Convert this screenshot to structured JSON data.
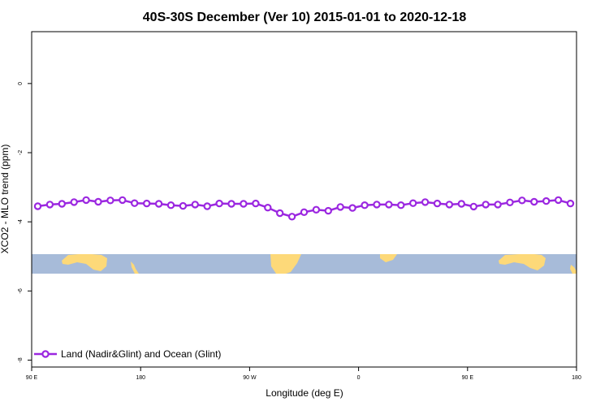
{
  "chart_data": {
    "type": "line",
    "title": "40S-30S December (Ver 10)   2015-01-01 to 2020-12-18",
    "xlabel": "Longitude (deg E)",
    "ylabel": "XCO2 - MLO trend (ppm)",
    "xlim": [
      90,
      540
    ],
    "ylim": [
      -8.2,
      1.5
    ],
    "x_ticks": [
      {
        "value": 90,
        "label": "90 E"
      },
      {
        "value": 180,
        "label": "180"
      },
      {
        "value": 270,
        "label": "90 W"
      },
      {
        "value": 360,
        "label": "0"
      },
      {
        "value": 450,
        "label": "90 E"
      },
      {
        "value": 540,
        "label": "180"
      }
    ],
    "y_ticks": [
      0,
      -2,
      -4,
      -6,
      -8
    ],
    "grid": false,
    "legend_position": "bottom-left",
    "series": [
      {
        "name": "Land (Nadir&Glint) and Ocean (Glint)",
        "color": "#9b27e0",
        "x": [
          95,
          105,
          115,
          125,
          135,
          145,
          155,
          165,
          175,
          185,
          195,
          205,
          215,
          225,
          235,
          245,
          255,
          265,
          275,
          285,
          295,
          305,
          315,
          325,
          335,
          345,
          355,
          365,
          375,
          385,
          395,
          405,
          415,
          425,
          435,
          445,
          455,
          465,
          475,
          485,
          495,
          505,
          515,
          525,
          535
        ],
        "y": [
          -3.55,
          -3.5,
          -3.48,
          -3.43,
          -3.37,
          -3.42,
          -3.38,
          -3.37,
          -3.46,
          -3.47,
          -3.48,
          -3.52,
          -3.54,
          -3.5,
          -3.55,
          -3.47,
          -3.48,
          -3.48,
          -3.47,
          -3.59,
          -3.75,
          -3.85,
          -3.72,
          -3.65,
          -3.68,
          -3.57,
          -3.6,
          -3.52,
          -3.5,
          -3.5,
          -3.52,
          -3.46,
          -3.43,
          -3.47,
          -3.5,
          -3.48,
          -3.56,
          -3.5,
          -3.5,
          -3.44,
          -3.38,
          -3.42,
          -3.4,
          -3.37,
          -3.47
        ]
      }
    ],
    "map_strip": {
      "ocean_color": "#a7bbd9",
      "land_color": "#fdd979"
    }
  }
}
